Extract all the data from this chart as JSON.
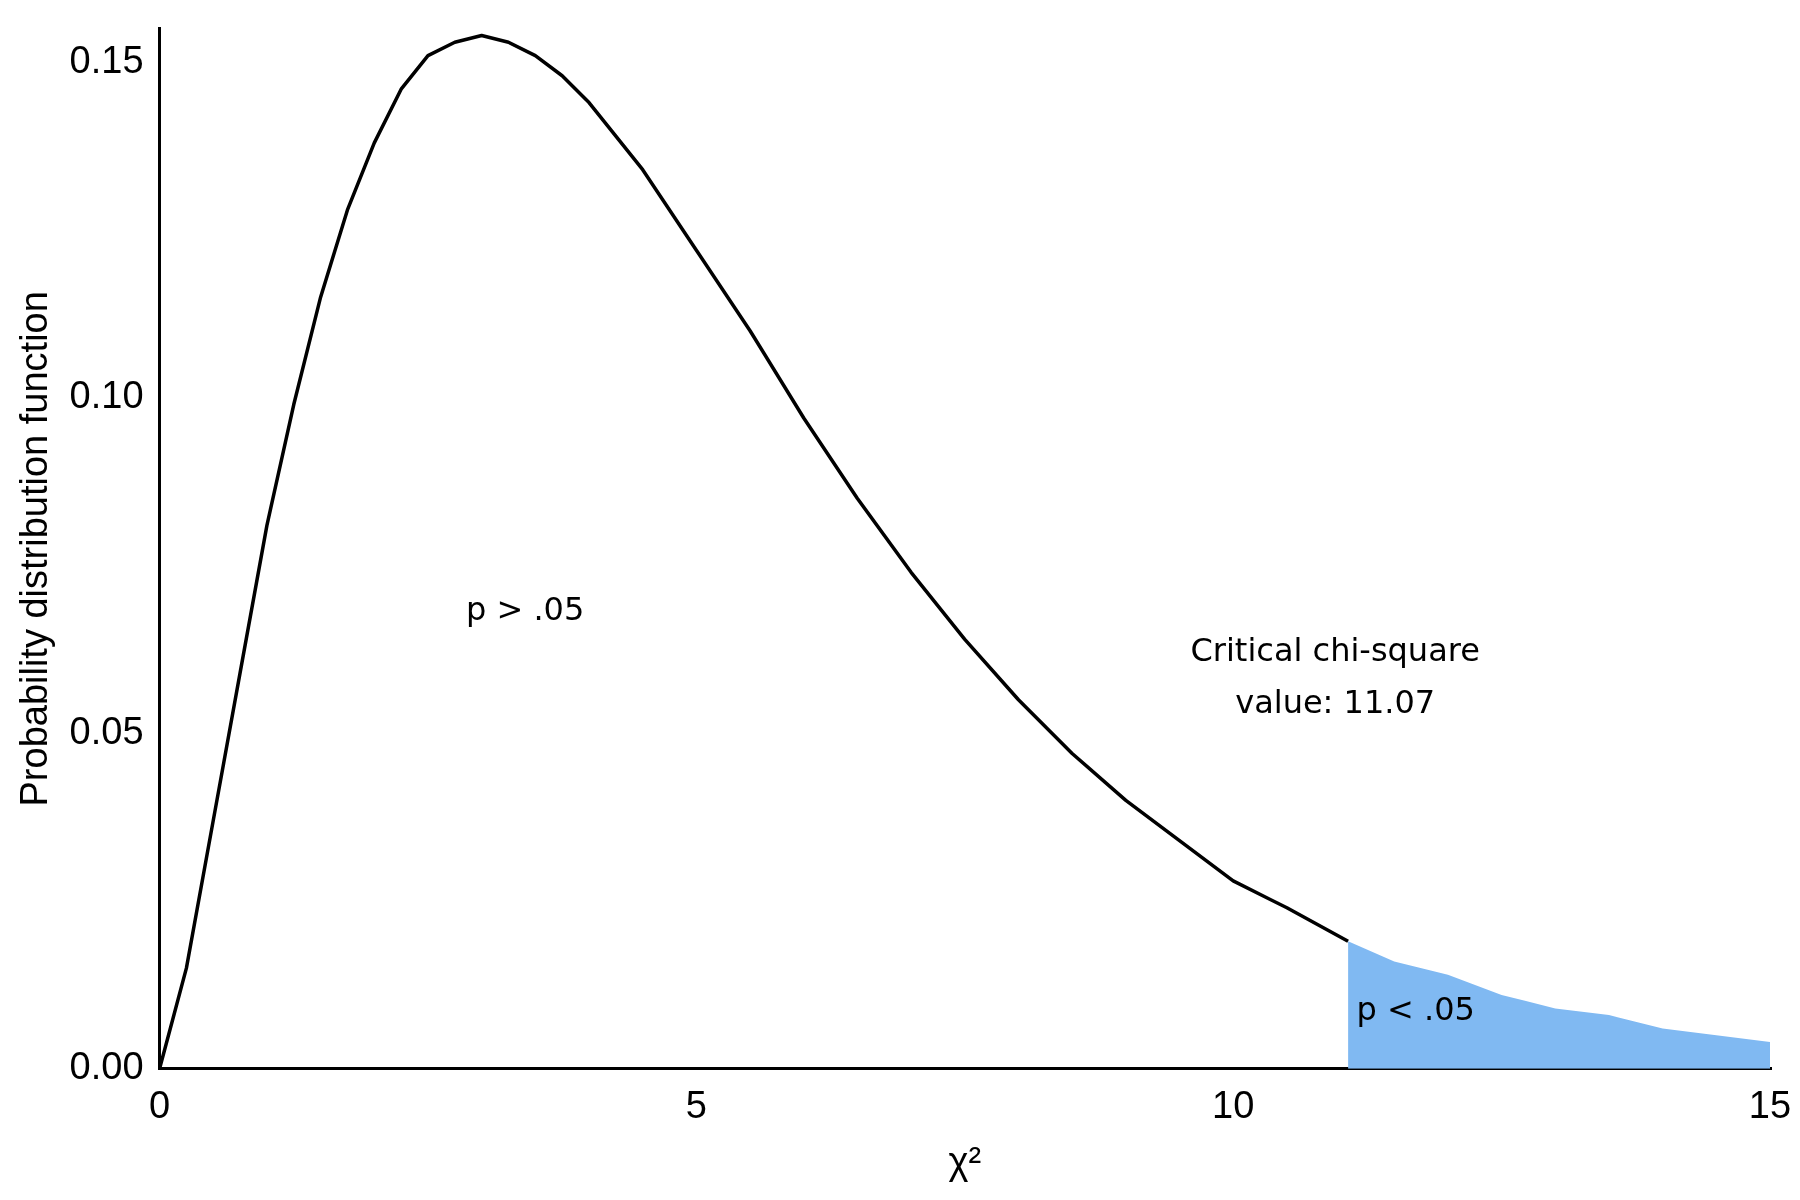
{
  "chart_data": {
    "type": "line",
    "xlabel": "χ²",
    "ylabel": "Probability distribution function",
    "xlim": [
      0,
      15
    ],
    "ylim": [
      0,
      0.155
    ],
    "xticks": [
      0,
      5,
      10,
      15
    ],
    "yticks": [
      {
        "value": 0,
        "label": "0.00"
      },
      {
        "value": 0.05,
        "label": "0.05"
      },
      {
        "value": 0.1,
        "label": "0.10"
      },
      {
        "value": 0.15,
        "label": "0.15"
      }
    ],
    "grid": false,
    "legend": false,
    "marker": "none",
    "line_style": "solid",
    "series": [
      {
        "type": "area",
        "color": "#80b9f2",
        "x": [
          11.07,
          11.5,
          12,
          12.5,
          13,
          13.5,
          14,
          14.5,
          15
        ],
        "values": [
          0.019,
          0.016,
          0.014,
          0.011,
          0.009,
          0.008,
          0.006,
          0.005,
          0.004
        ]
      },
      {
        "type": "line",
        "color": "#000000",
        "x": [
          0,
          0.25,
          0.5,
          0.75,
          1,
          1.25,
          1.5,
          1.75,
          2,
          2.25,
          2.5,
          2.75,
          3,
          3.25,
          3.5,
          3.75,
          4,
          4.5,
          5,
          5.5,
          6,
          6.5,
          7,
          7.5,
          8,
          8.5,
          9,
          9.5,
          10,
          10.5,
          11.07
        ],
        "values": [
          0,
          0.015,
          0.037,
          0.059,
          0.081,
          0.099,
          0.115,
          0.128,
          0.138,
          0.146,
          0.151,
          0.153,
          0.154,
          0.153,
          0.151,
          0.148,
          0.144,
          0.134,
          0.122,
          0.11,
          0.097,
          0.085,
          0.074,
          0.064,
          0.055,
          0.047,
          0.04,
          0.034,
          0.028,
          0.024,
          0.019
        ]
      }
    ],
    "annotations": [
      "p > .05",
      "Critical chi-square\nvalue: 11.07",
      "p < .05"
    ]
  }
}
